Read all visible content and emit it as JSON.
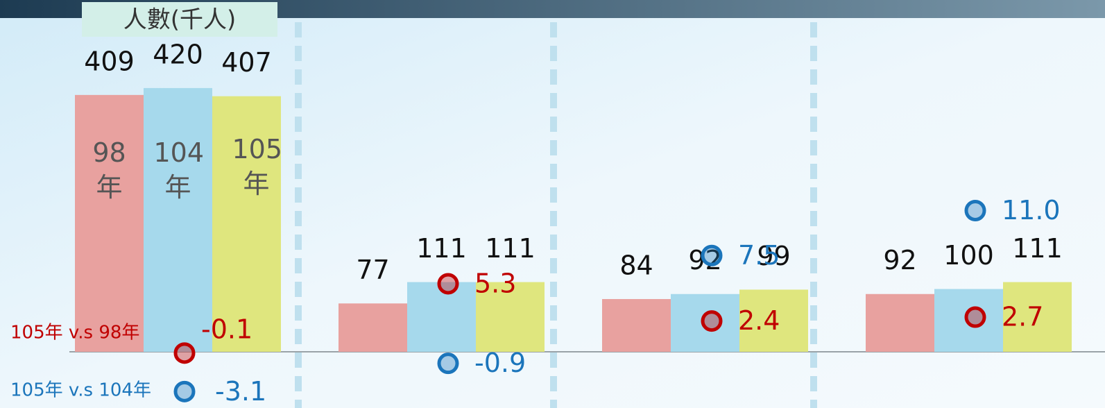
{
  "chart_data": {
    "type": "bar",
    "title": "人數(千人)",
    "categories": [
      null,
      null,
      null,
      null
    ],
    "series": [
      {
        "name": "98年",
        "color": "#e8a19f",
        "values": [
          409,
          77,
          84,
          92
        ]
      },
      {
        "name": "104年",
        "color": "#a6d9ec",
        "values": [
          420,
          111,
          92,
          100
        ]
      },
      {
        "name": "105年",
        "color": "#dfe67e",
        "values": [
          407,
          111,
          99,
          111
        ]
      }
    ],
    "changes": [
      {
        "name": "105年 v.s 98年",
        "color": "#c00000",
        "values": [
          -0.1,
          5.3,
          2.4,
          2.7
        ]
      },
      {
        "name": "105年 v.s 104年",
        "color": "#1b75bb",
        "values": [
          -3.1,
          -0.9,
          7.5,
          11
        ],
        "value_labels": [
          "-3.1",
          "-0.9",
          "7.5",
          "11.0"
        ]
      }
    ]
  }
}
